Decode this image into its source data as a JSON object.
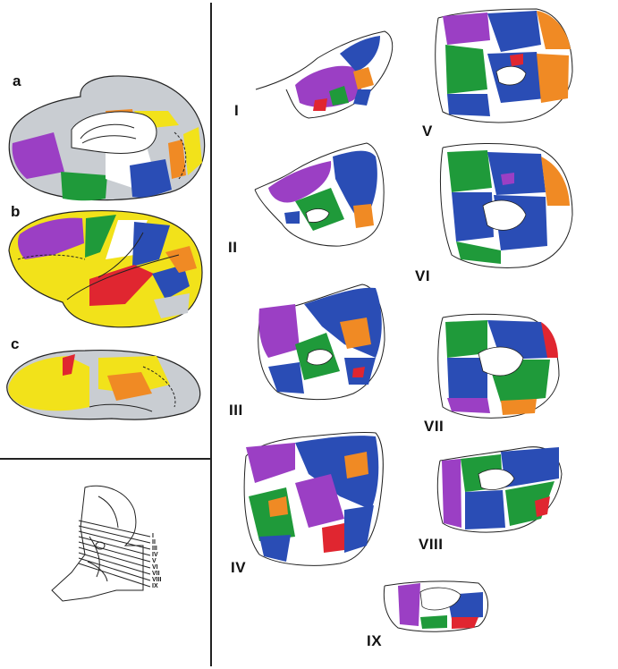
{
  "panel_labels": {
    "a": "a",
    "b": "b",
    "c": "c"
  },
  "section_labels": [
    "I",
    "II",
    "III",
    "IV",
    "V",
    "VI",
    "VII",
    "VIII",
    "IX"
  ],
  "inset_labels": [
    "I",
    "II",
    "III",
    "IV",
    "V",
    "VI",
    "VII",
    "VIII",
    "IX"
  ],
  "colors": {
    "purple": "#9b3fc4",
    "green": "#1f9a3a",
    "blue": "#2a4db5",
    "orange": "#f08a24",
    "yellow": "#f2e21a",
    "red": "#e02630",
    "gray": "#c9cdd2",
    "outline": "#222222"
  }
}
